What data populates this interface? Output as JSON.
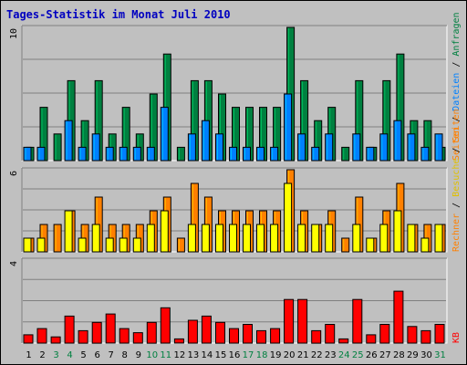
{
  "chart_data": [
    {
      "type": "bar",
      "title": "Tages-Statistik im Monat Juli 2010",
      "panel": "top",
      "ylim": [
        0,
        10
      ],
      "y_tick_label": "10",
      "right_labels": [
        "Seiten",
        "Dateien",
        "Anfragen"
      ],
      "categories": [
        "1",
        "2",
        "3",
        "4",
        "5",
        "6",
        "7",
        "8",
        "9",
        "10",
        "11",
        "12",
        "13",
        "14",
        "15",
        "16",
        "17",
        "18",
        "19",
        "20",
        "21",
        "22",
        "23",
        "24",
        "25",
        "26",
        "27",
        "28",
        "29",
        "30",
        "31"
      ],
      "series": [
        {
          "name": "Anfragen",
          "color": "#008040",
          "values": [
            1,
            4,
            2,
            6,
            3,
            6,
            2,
            4,
            2,
            5,
            8,
            1,
            6,
            6,
            5,
            4,
            4,
            4,
            4,
            10,
            6,
            3,
            4,
            1,
            6,
            1,
            6,
            8,
            3,
            3,
            1
          ]
        },
        {
          "name": "Dateien",
          "color": "#0080ff",
          "values": [
            1,
            1,
            0,
            3,
            1,
            2,
            1,
            1,
            1,
            1,
            4,
            0,
            2,
            3,
            2,
            1,
            1,
            1,
            1,
            5,
            2,
            1,
            2,
            0,
            2,
            1,
            2,
            3,
            2,
            1,
            2
          ]
        }
      ]
    },
    {
      "type": "bar",
      "panel": "middle",
      "ylim": [
        0,
        6
      ],
      "y_tick_label": "6",
      "right_labels": [
        "Rechner",
        "Besuche",
        "Seiten"
      ],
      "categories": [
        "1",
        "2",
        "3",
        "4",
        "5",
        "6",
        "7",
        "8",
        "9",
        "10",
        "11",
        "12",
        "13",
        "14",
        "15",
        "16",
        "17",
        "18",
        "19",
        "20",
        "21",
        "22",
        "23",
        "24",
        "25",
        "26",
        "27",
        "28",
        "29",
        "30",
        "31"
      ],
      "series": [
        {
          "name": "Seiten",
          "color": "#ff8000",
          "values": [
            1,
            2,
            2,
            3,
            2,
            4,
            2,
            2,
            2,
            3,
            4,
            1,
            5,
            4,
            3,
            3,
            3,
            3,
            3,
            6,
            3,
            2,
            3,
            1,
            4,
            1,
            3,
            5,
            2,
            2,
            2
          ]
        },
        {
          "name": "Besuche",
          "color": "#ffff00",
          "values": [
            1,
            1,
            0,
            3,
            1,
            2,
            1,
            1,
            1,
            2,
            3,
            0,
            2,
            2,
            2,
            2,
            2,
            2,
            2,
            5,
            2,
            2,
            2,
            0,
            2,
            1,
            2,
            3,
            2,
            1,
            2
          ]
        }
      ]
    },
    {
      "type": "bar",
      "panel": "bottom",
      "ylim": [
        0,
        4
      ],
      "y_tick_label": "4",
      "right_labels": [
        "KB"
      ],
      "categories": [
        "1",
        "2",
        "3",
        "4",
        "5",
        "6",
        "7",
        "8",
        "9",
        "10",
        "11",
        "12",
        "13",
        "14",
        "15",
        "16",
        "17",
        "18",
        "19",
        "20",
        "21",
        "22",
        "23",
        "24",
        "25",
        "26",
        "27",
        "28",
        "29",
        "30",
        "31"
      ],
      "series": [
        {
          "name": "KB",
          "color": "#ff0000",
          "values": [
            0.4,
            0.7,
            0.3,
            1.3,
            0.6,
            1.0,
            1.4,
            0.7,
            0.5,
            1.0,
            1.7,
            0.2,
            1.1,
            1.3,
            1.0,
            0.7,
            0.9,
            0.6,
            0.7,
            2.1,
            2.1,
            0.6,
            0.9,
            0.2,
            2.1,
            0.4,
            0.9,
            2.5,
            0.8,
            0.6,
            0.9
          ]
        }
      ]
    }
  ],
  "x_axis": {
    "weekend_days": [
      "3",
      "4",
      "10",
      "11",
      "17",
      "18",
      "24",
      "25",
      "31"
    ],
    "weekday_color": "#000000",
    "weekend_color": "#008040"
  },
  "colors": {
    "background": "#c0c0c0",
    "panel": "#c0c0c0",
    "grid": "#808080",
    "title": "#0000c0"
  }
}
